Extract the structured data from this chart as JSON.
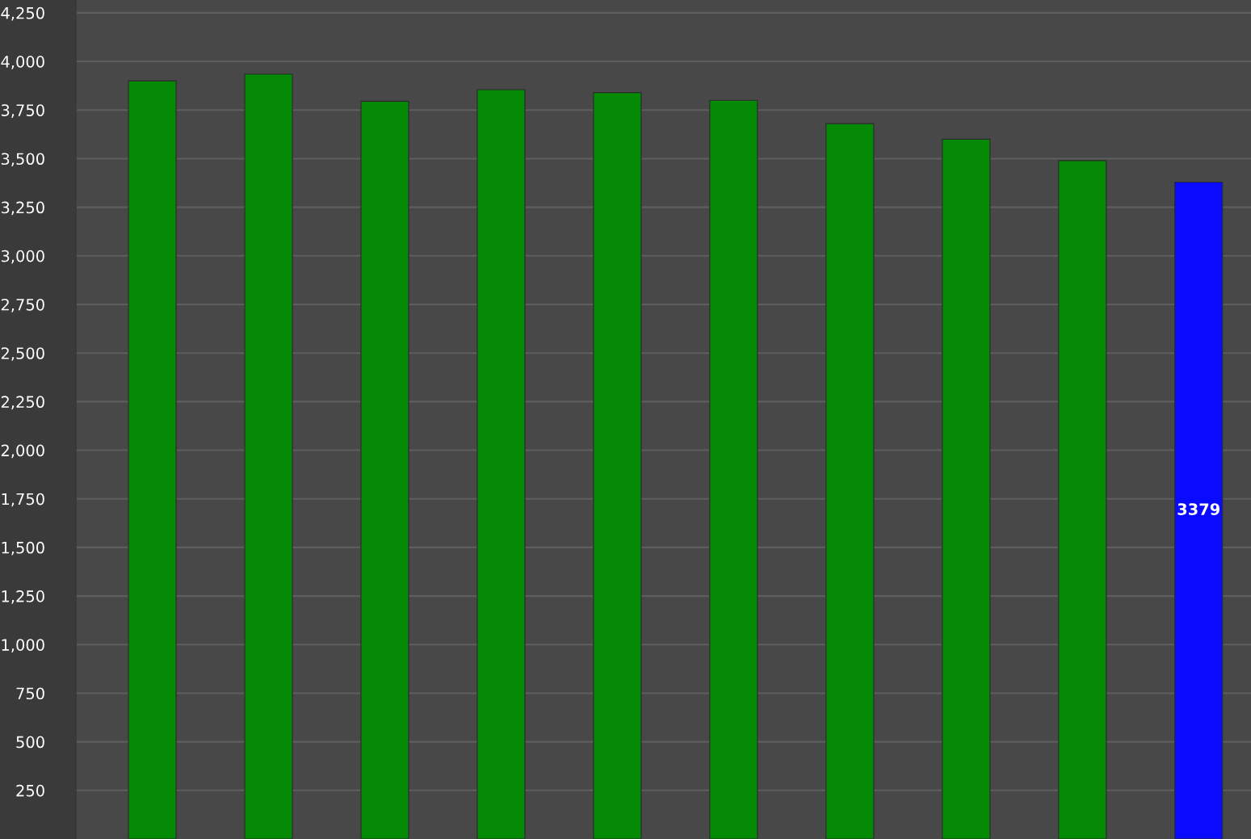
{
  "chart_data": {
    "type": "bar",
    "categories": [
      null,
      null,
      null,
      null,
      null,
      null,
      null,
      null,
      null,
      null
    ],
    "values": [
      3900,
      3935,
      3795,
      3855,
      3840,
      3800,
      3680,
      3600,
      3490,
      3379
    ],
    "colors": [
      "#058a05",
      "#058a05",
      "#058a05",
      "#058a05",
      "#058a05",
      "#058a05",
      "#058a05",
      "#058a05",
      "#058a05",
      "#0a0aff"
    ],
    "value_labels": [
      null,
      null,
      null,
      null,
      null,
      null,
      null,
      null,
      null,
      "3379"
    ],
    "ylim": [
      0,
      4316
    ],
    "yticks": [
      250,
      500,
      750,
      {
        "value": 1000,
        "label": "1,000"
      },
      {
        "value": 1250,
        "label": "1,250"
      },
      {
        "value": 1500,
        "label": "1,500"
      },
      {
        "value": 1750,
        "label": "1,750"
      },
      {
        "value": 2000,
        "label": "2,000"
      },
      {
        "value": 2250,
        "label": "2,250"
      },
      {
        "value": 2500,
        "label": "2,500"
      },
      {
        "value": 2750,
        "label": "2,750"
      },
      {
        "value": 3000,
        "label": "3,000"
      },
      {
        "value": 3250,
        "label": "3,250"
      },
      {
        "value": 3500,
        "label": "3,500"
      },
      {
        "value": 3750,
        "label": "3,750"
      },
      {
        "value": 4000,
        "label": "4,000"
      },
      {
        "value": 4250,
        "label": "4,250"
      }
    ],
    "grid": "y"
  }
}
